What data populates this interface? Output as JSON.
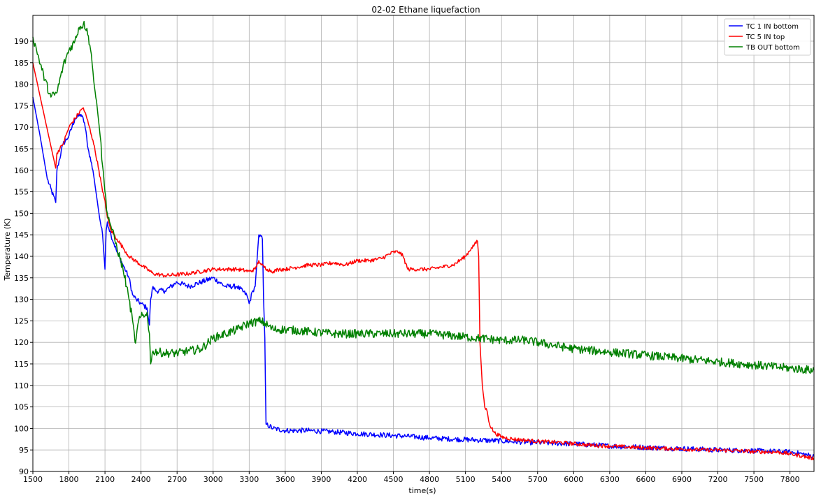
{
  "chart_data": {
    "type": "line",
    "title": "02-02 Ethane liquefaction",
    "xlabel": "time(s)",
    "ylabel": "Temperature (K)",
    "xlim": [
      1500,
      8000
    ],
    "ylim": [
      90,
      196
    ],
    "xticks": [
      1500,
      1800,
      2100,
      2400,
      2700,
      3000,
      3300,
      3600,
      3900,
      4200,
      4500,
      4800,
      5100,
      5400,
      5700,
      6000,
      6300,
      6600,
      6900,
      7200,
      7500,
      7800
    ],
    "yticks": [
      90,
      95,
      100,
      105,
      110,
      115,
      120,
      125,
      130,
      135,
      140,
      145,
      150,
      155,
      160,
      165,
      170,
      175,
      180,
      185,
      190
    ],
    "grid": true,
    "legend_position": "top-right",
    "series": [
      {
        "name": "TC 1 IN bottom",
        "color": "#0000ff",
        "noise": 0.6,
        "x": [
          1500,
          1560,
          1620,
          1690,
          1700,
          1750,
          1800,
          1850,
          1900,
          1930,
          1960,
          2000,
          2050,
          2080,
          2100,
          2110,
          2120,
          2150,
          2200,
          2250,
          2300,
          2330,
          2360,
          2400,
          2450,
          2470,
          2480,
          2500,
          2520,
          2600,
          2700,
          2800,
          2900,
          3000,
          3100,
          3200,
          3280,
          3300,
          3330,
          3350,
          3380,
          3410,
          3420,
          3430,
          3440,
          3500,
          3600,
          3800,
          4000,
          4200,
          4400,
          4600,
          4800,
          5000,
          5200,
          5400,
          5600,
          5800,
          6000,
          6200,
          6400,
          6600,
          6800,
          7000,
          7200,
          7400,
          7600,
          7800,
          7900,
          8000
        ],
        "y": [
          177,
          168,
          158,
          152.5,
          160,
          166,
          168,
          172,
          173,
          171,
          165,
          160,
          150,
          145,
          137,
          146,
          148,
          145,
          141,
          138,
          135,
          131,
          130,
          129,
          128,
          124,
          130,
          133,
          132,
          132,
          134,
          133,
          134,
          135,
          133,
          133,
          131,
          129,
          132,
          133,
          145,
          144,
          130,
          121,
          101,
          100,
          99.5,
          99.5,
          99.2,
          98.8,
          98.5,
          98.2,
          97.8,
          97.5,
          97.3,
          97.1,
          96.8,
          96.6,
          96.4,
          96.1,
          95.8,
          95.6,
          95.4,
          95.2,
          95,
          94.9,
          94.7,
          94.5,
          94.1,
          93.5
        ]
      },
      {
        "name": "TC 5 IN top",
        "color": "#ff0000",
        "noise": 0.45,
        "x": [
          1500,
          1600,
          1690,
          1700,
          1750,
          1800,
          1850,
          1900,
          1920,
          1950,
          2000,
          2050,
          2080,
          2100,
          2120,
          2150,
          2200,
          2250,
          2300,
          2400,
          2500,
          2600,
          2800,
          3000,
          3200,
          3300,
          3350,
          3380,
          3400,
          3450,
          3500,
          3550,
          3600,
          3700,
          3800,
          3900,
          4000,
          4100,
          4200,
          4300,
          4400,
          4500,
          4550,
          4580,
          4620,
          4700,
          4800,
          4900,
          5000,
          5100,
          5150,
          5200,
          5210,
          5215,
          5220,
          5240,
          5260,
          5280,
          5300,
          5340,
          5400,
          5500,
          5700,
          5900,
          6100,
          6300,
          6500,
          6700,
          6900,
          7100,
          7300,
          7500,
          7700,
          7800,
          7900,
          8000
        ],
        "y": [
          185,
          172,
          160.5,
          164,
          166,
          170,
          172,
          174,
          174.5,
          172,
          167,
          160,
          155,
          153,
          149,
          146,
          144,
          142,
          140,
          138,
          136,
          135.5,
          136,
          137,
          137,
          136.5,
          137,
          139,
          138,
          137,
          136.5,
          137,
          137,
          137.5,
          138,
          138,
          138.5,
          138,
          139,
          139,
          139.5,
          141,
          141,
          140,
          137,
          137,
          137,
          137.5,
          138,
          140,
          142,
          143.5,
          140,
          130,
          120,
          110,
          105,
          104,
          101,
          99,
          98,
          97.5,
          97,
          96.7,
          96.2,
          95.9,
          95.6,
          95.4,
          95.2,
          95,
          94.9,
          94.6,
          94.5,
          94.1,
          93.6,
          93
        ]
      },
      {
        "name": "TB OUT bottom",
        "color": "#008000",
        "noise": 1.0,
        "x": [
          1500,
          1550,
          1600,
          1650,
          1700,
          1750,
          1800,
          1850,
          1880,
          1920,
          1950,
          1980,
          2000,
          2030,
          2060,
          2080,
          2100,
          2120,
          2150,
          2200,
          2250,
          2280,
          2300,
          2330,
          2350,
          2360,
          2380,
          2400,
          2430,
          2450,
          2470,
          2480,
          2500,
          2600,
          2700,
          2800,
          2900,
          3000,
          3100,
          3200,
          3300,
          3400,
          3500,
          3600,
          3800,
          4000,
          4200,
          4400,
          4600,
          4800,
          5000,
          5200,
          5400,
          5600,
          5800,
          6000,
          6200,
          6400,
          6600,
          6800,
          7000,
          7200,
          7400,
          7600,
          7800,
          8000
        ],
        "y": [
          191,
          186,
          181,
          177,
          178,
          184,
          188,
          190,
          193,
          194,
          193,
          188,
          183,
          176,
          168,
          161,
          155,
          150,
          147,
          142,
          137,
          133,
          130,
          125,
          120,
          121,
          125,
          126,
          126,
          127,
          122,
          115,
          118,
          117.5,
          117.5,
          118,
          118.5,
          121,
          122,
          123,
          124.5,
          125,
          123,
          123,
          122.5,
          122,
          122,
          122,
          122,
          122,
          121.5,
          121,
          120.5,
          120.5,
          119.5,
          118.5,
          118,
          117.5,
          117,
          116.5,
          116,
          115.5,
          115,
          114.5,
          114,
          113.5
        ]
      }
    ]
  }
}
